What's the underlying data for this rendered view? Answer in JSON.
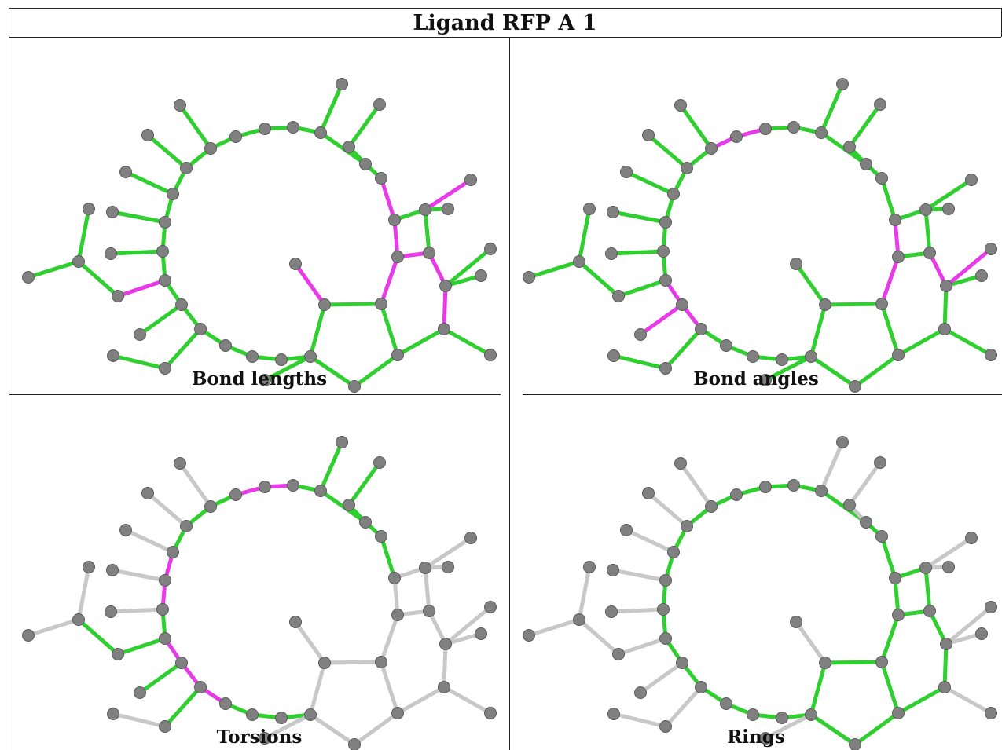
{
  "title": "Ligand RFP A 1",
  "panels": [
    {
      "caption": "Bond lengths",
      "highlight_mode": "length"
    },
    {
      "caption": "Bond angles",
      "highlight_mode": "angle"
    },
    {
      "caption": "Torsions",
      "highlight_mode": "torsion"
    },
    {
      "caption": "Rings",
      "highlight_mode": "ring"
    }
  ],
  "colors": {
    "atom": "#808080",
    "atom_outline": "#5a5a5a",
    "bond_ok": "#2fcf2f",
    "bond_flagged": "#e83ae8",
    "bond_inactive": "#c8c8c8",
    "border": "#222222"
  }
}
